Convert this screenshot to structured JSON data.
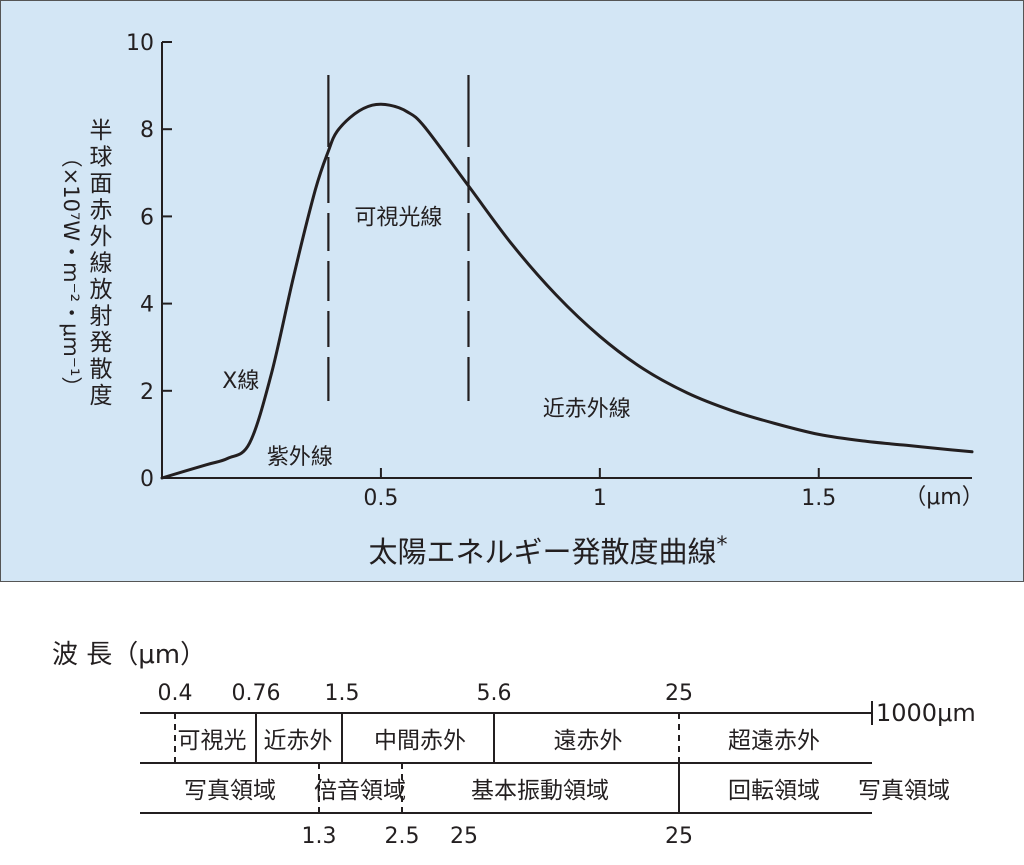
{
  "chart_data": {
    "type": "line",
    "title": "太陽エネルギー発散度曲線",
    "title_mark": "*",
    "ylabel": "半球面赤外線放射発散度",
    "yunit": "（×10⁷W・m⁻²・μm⁻¹）",
    "xunit": "（μm）",
    "xlim": [
      0,
      1.85
    ],
    "ylim": [
      0,
      10
    ],
    "xticks": [
      {
        "v": 0.5,
        "label": "0.5"
      },
      {
        "v": 1,
        "label": "1"
      },
      {
        "v": 1.5,
        "label": "1.5"
      }
    ],
    "yticks": [
      {
        "v": 0,
        "label": "0"
      },
      {
        "v": 2,
        "label": "2"
      },
      {
        "v": 4,
        "label": "4"
      },
      {
        "v": 6,
        "label": "6"
      },
      {
        "v": 8,
        "label": "8"
      },
      {
        "v": 10,
        "label": "10"
      }
    ],
    "series": [
      {
        "x": [
          0.0,
          0.1,
          0.15,
          0.2,
          0.25,
          0.3,
          0.35,
          0.38,
          0.4,
          0.44,
          0.48,
          0.52,
          0.56,
          0.6,
          0.7,
          0.8,
          0.9,
          1.0,
          1.1,
          1.2,
          1.3,
          1.4,
          1.5,
          1.6,
          1.7,
          1.8,
          1.85
        ],
        "y": [
          0.0,
          0.3,
          0.45,
          0.8,
          2.4,
          4.6,
          6.6,
          7.5,
          7.95,
          8.35,
          8.55,
          8.55,
          8.4,
          8.05,
          6.7,
          5.35,
          4.2,
          3.25,
          2.5,
          1.95,
          1.55,
          1.25,
          1.0,
          0.85,
          0.75,
          0.65,
          0.6
        ]
      }
    ],
    "boundaries": [
      0.38,
      0.7
    ],
    "annotations": [
      {
        "text": "X線",
        "x": 0.18,
        "y": 2.25
      },
      {
        "text": "紫外線",
        "x": 0.315,
        "y": 0.5
      },
      {
        "text": "可視光線",
        "x": 0.54,
        "y": 6.0
      },
      {
        "text": "近赤外線",
        "x": 0.97,
        "y": 1.6
      }
    ]
  },
  "wavelength_table": {
    "label": "波 長（μm）",
    "top_values": [
      "0.4",
      "0.76",
      "1.5",
      "5.6",
      "25"
    ],
    "end_label": "1000μm",
    "bands": [
      "可視光",
      "近赤外",
      "中間赤外",
      "遠赤外",
      "超遠赤外"
    ],
    "regions": [
      "写真領域",
      "倍音領域",
      "基本振動領域",
      "回転領域",
      "写真領域"
    ],
    "bottom_values": [
      "1.3",
      "2.5",
      "25",
      "25"
    ]
  },
  "colors": {
    "panel_bg": "#d3e6f5",
    "ink": "#231f20",
    "panel_border": "#555555"
  }
}
